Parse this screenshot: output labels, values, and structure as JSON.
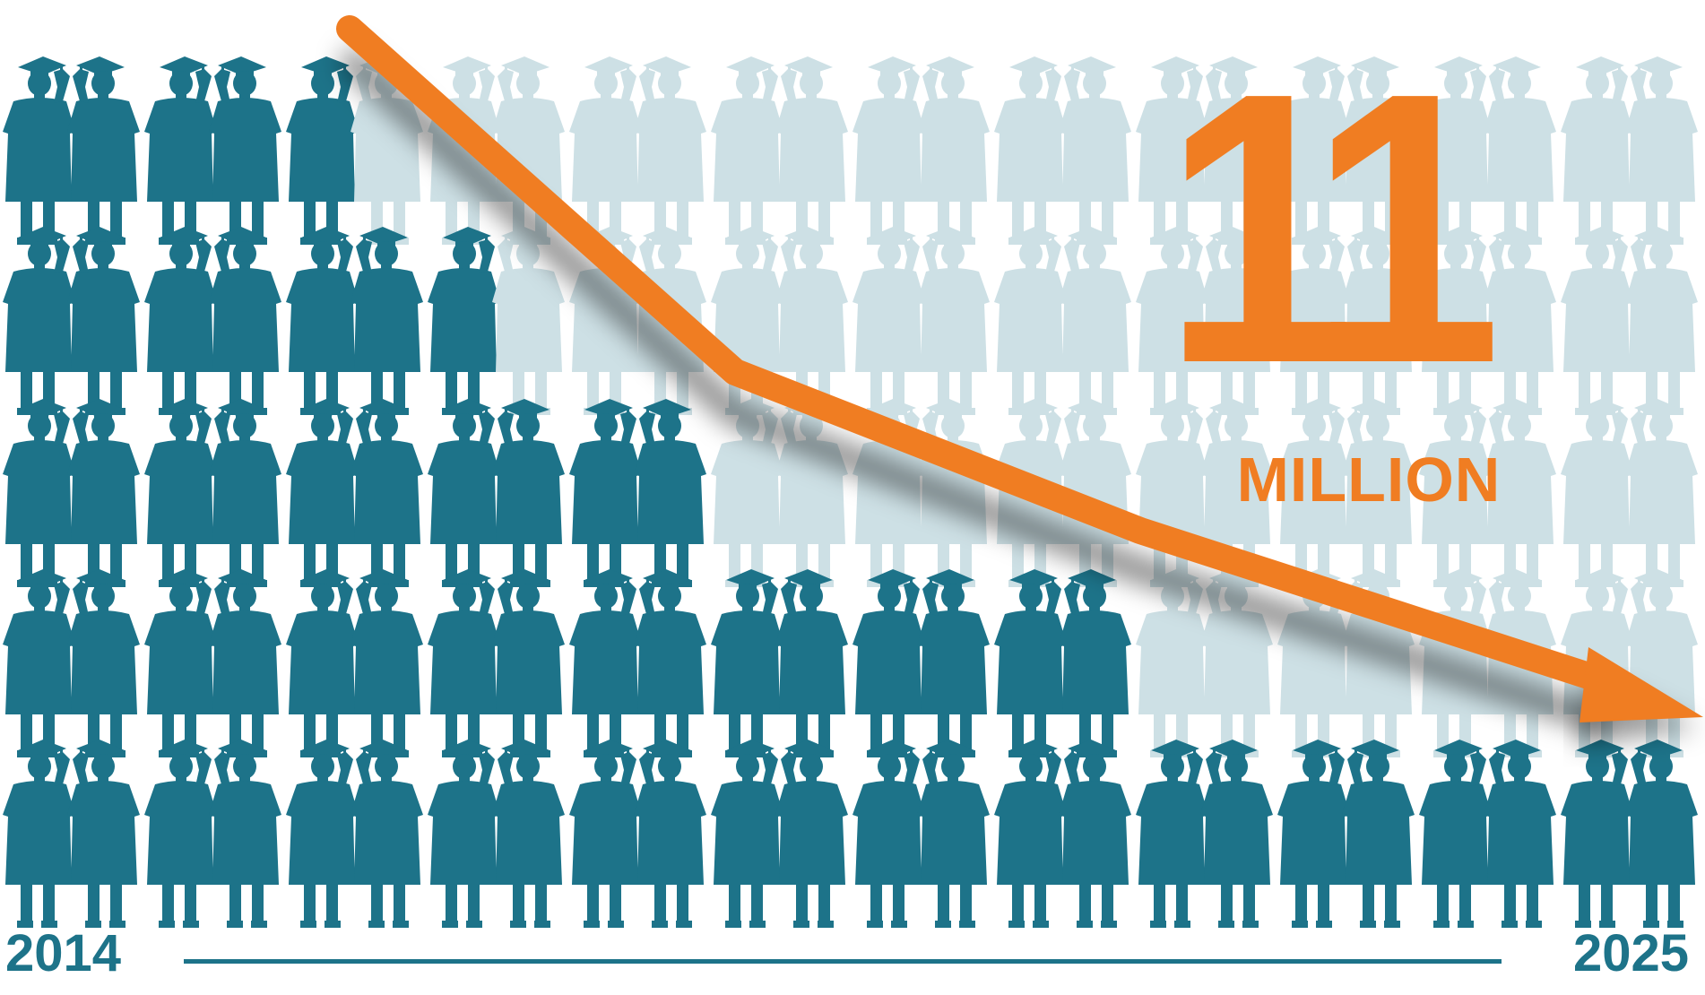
{
  "chart_data": {
    "type": "line",
    "headline_value": "11",
    "headline_unit": "MILLION",
    "x_start_label": "2014",
    "x_end_label": "2025",
    "trend": "declining",
    "colors": {
      "line": "#f07d22",
      "figure_filled": "#1d7389",
      "figure_faded": "#cde0e5",
      "text_primary": "#1d7389",
      "text_accent": "#f07d22"
    },
    "icon": "graduate-silhouette",
    "rows": [
      {
        "filled": 5,
        "total": 24
      },
      {
        "filled": 7,
        "total": 24
      },
      {
        "filled": 10,
        "total": 24
      },
      {
        "filled": 16,
        "total": 24
      },
      {
        "filled": 24,
        "total": 24
      }
    ]
  }
}
